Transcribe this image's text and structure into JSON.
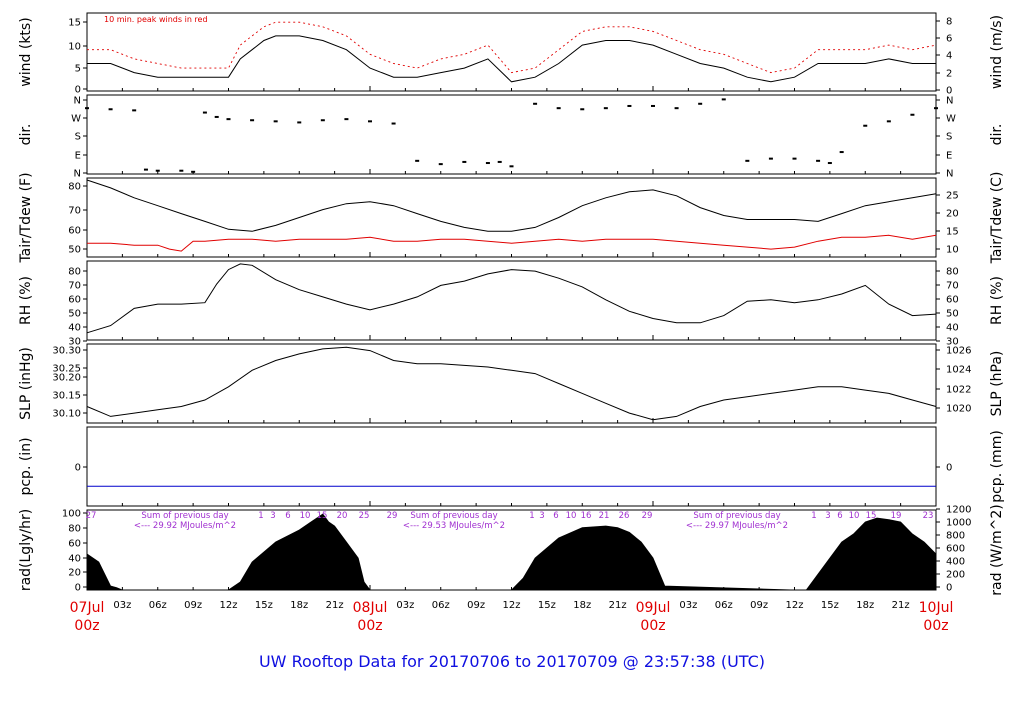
{
  "title": "UW Rooftop Data for 20170706  to  20170709 @ 23:57:38  (UTC)",
  "title_color": "#1010e0",
  "date_label_color": "#e00000",
  "x_tick_labels": [
    "03z",
    "06z",
    "09z",
    "12z",
    "15z",
    "18z",
    "21z",
    "03z",
    "06z",
    "09z",
    "12z",
    "15z",
    "18z",
    "21z",
    "03z",
    "06z",
    "09z",
    "12z",
    "15z",
    "18z",
    "21z"
  ],
  "date_labels": [
    {
      "date": "07Jul",
      "hour": "00z"
    },
    {
      "date": "08Jul",
      "hour": "00z"
    },
    {
      "date": "09Jul",
      "hour": "00z"
    },
    {
      "date": "10Jul",
      "hour": "00z"
    }
  ],
  "panels": {
    "wind": {
      "left_label": "wind (kts)",
      "right_label": "wind (m/s)",
      "note": "10 min. peak winds in red",
      "note_color": "#e00000",
      "left_ticks": [
        "0",
        "5",
        "10",
        "15"
      ],
      "right_ticks": [
        "0",
        "2",
        "4",
        "6",
        "8"
      ]
    },
    "dir": {
      "left_label": "dir.",
      "right_label": "dir.",
      "left_ticks": [
        "N",
        "E",
        "S",
        "W",
        "N"
      ],
      "right_ticks": [
        "N",
        "E",
        "S",
        "W",
        "N"
      ]
    },
    "temp": {
      "left_label": "Tair/Tdew (F)",
      "right_label": "Tair/Tdew (C)",
      "left_ticks": [
        "50",
        "60",
        "70",
        "80"
      ],
      "right_ticks": [
        "10",
        "15",
        "20",
        "25"
      ]
    },
    "rh": {
      "left_label": "RH (%)",
      "right_label": "RH (%)",
      "left_ticks": [
        "30",
        "40",
        "50",
        "60",
        "70",
        "80"
      ],
      "right_ticks": [
        "30",
        "40",
        "50",
        "60",
        "70",
        "80"
      ]
    },
    "slp": {
      "left_label": "SLP (inHg)",
      "right_label": "SLP (hPa)",
      "left_ticks": [
        "30.10",
        "30.15",
        "30.20",
        "30.25",
        "30.30"
      ],
      "right_ticks": [
        "1020",
        "1022",
        "1024",
        "1026"
      ]
    },
    "pcp": {
      "left_label": "pcp. (in)",
      "right_label": "pcp. (mm)",
      "left_ticks": [
        "0"
      ],
      "right_ticks": [
        "0"
      ]
    },
    "rad": {
      "left_label": "rad(Lgly/hr)",
      "right_label": "rad (W/m^2)",
      "left_ticks": [
        "0",
        "20",
        "40",
        "60",
        "80",
        "100"
      ],
      "right_ticks": [
        "0",
        "200",
        "400",
        "600",
        "800",
        "1000",
        "1200"
      ],
      "sum_label": "Sum of previous day",
      "sums": [
        "<--- 29.92 MJoules/m^2",
        "<--- 29.53 MJoules/m^2",
        "<--- 29.97 MJoules/m^2"
      ],
      "sum_color": "#a030d0",
      "hour_marks": [
        "27",
        "1",
        "3",
        "6",
        "10",
        "15",
        "20",
        "25",
        "29",
        "1",
        "3",
        "6",
        "10",
        "16",
        "21",
        "26",
        "29",
        "1",
        "3",
        "6",
        "10",
        "15",
        "19",
        "23"
      ]
    }
  },
  "chart_data": [
    {
      "type": "line",
      "name": "wind",
      "x_unit": "hours since 07Jul 00z",
      "xlim": [
        0,
        72
      ],
      "ylim": [
        0,
        17
      ],
      "series": [
        {
          "name": "",
          "color": "#000000",
          "x": [
            0,
            2,
            4,
            6,
            8,
            10,
            12,
            13,
            14,
            15,
            16,
            18,
            20,
            22,
            24,
            26,
            28,
            30,
            32,
            34,
            36,
            38,
            40,
            42,
            44,
            46,
            48,
            50,
            52,
            54,
            56,
            58,
            60,
            62,
            64,
            66,
            68,
            70,
            72
          ],
          "values": [
            6,
            6,
            4,
            3,
            3,
            3,
            3,
            7,
            9,
            11,
            12,
            12,
            11,
            9,
            5,
            3,
            3,
            4,
            5,
            7,
            2,
            3,
            6,
            10,
            11,
            11,
            10,
            8,
            6,
            5,
            3,
            2,
            3,
            6,
            6,
            6,
            7,
            6,
            6
          ]
        },
        {
          "name": "10 min. peak winds in red",
          "color": "#e00000",
          "x": [
            0,
            2,
            4,
            6,
            8,
            10,
            12,
            13,
            14,
            15,
            16,
            18,
            20,
            22,
            24,
            26,
            28,
            30,
            32,
            34,
            36,
            38,
            40,
            42,
            44,
            46,
            48,
            50,
            52,
            54,
            56,
            58,
            60,
            62,
            64,
            66,
            68,
            70,
            72
          ],
          "values": [
            9,
            9,
            7,
            6,
            5,
            5,
            5,
            10,
            12,
            14,
            15,
            15,
            14,
            12,
            8,
            6,
            5,
            7,
            8,
            10,
            4,
            5,
            9,
            13,
            14,
            14,
            13,
            11,
            9,
            8,
            6,
            4,
            5,
            9,
            9,
            9,
            10,
            9,
            10
          ]
        }
      ]
    },
    {
      "type": "scatter",
      "name": "dir",
      "x_unit": "hours since 07Jul 00z",
      "y_unit": "degrees (0=N at bottom)",
      "xlim": [
        0,
        72
      ],
      "ylim": [
        0,
        360
      ],
      "series": [
        {
          "name": "",
          "color": "#000000",
          "x": [
            0,
            2,
            4,
            5,
            6,
            8,
            9,
            10,
            11,
            12,
            14,
            16,
            18,
            20,
            22,
            24,
            26,
            28,
            30,
            32,
            34,
            35,
            36,
            38,
            40,
            42,
            44,
            46,
            48,
            50,
            52,
            54,
            56,
            58,
            60,
            62,
            63,
            64,
            66,
            68,
            70,
            72
          ],
          "values": [
            300,
            295,
            290,
            20,
            15,
            15,
            10,
            280,
            260,
            250,
            245,
            240,
            235,
            245,
            250,
            240,
            230,
            60,
            45,
            55,
            50,
            55,
            35,
            320,
            300,
            295,
            300,
            310,
            310,
            300,
            320,
            340,
            60,
            70,
            70,
            60,
            50,
            100,
            220,
            240,
            270,
            300
          ]
        }
      ]
    },
    {
      "type": "line",
      "name": "temp",
      "x_unit": "hours since 07Jul 00z",
      "xlim": [
        0,
        72
      ],
      "ylim": [
        44,
        84
      ],
      "series": [
        {
          "name": "",
          "color": "#000000",
          "x": [
            0,
            2,
            4,
            6,
            8,
            10,
            12,
            14,
            16,
            18,
            20,
            22,
            24,
            26,
            28,
            30,
            32,
            34,
            36,
            38,
            40,
            42,
            44,
            46,
            48,
            50,
            52,
            54,
            56,
            58,
            60,
            62,
            64,
            66,
            68,
            70,
            72
          ],
          "values": [
            83,
            79,
            74,
            70,
            66,
            62,
            58,
            57,
            60,
            64,
            68,
            71,
            72,
            70,
            66,
            62,
            59,
            57,
            57,
            59,
            64,
            70,
            74,
            77,
            78,
            75,
            69,
            65,
            63,
            63,
            63,
            62,
            66,
            70,
            72,
            74,
            76
          ]
        },
        {
          "name": "",
          "color": "#e00000",
          "x": [
            0,
            2,
            4,
            6,
            7,
            8,
            9,
            10,
            12,
            14,
            16,
            18,
            20,
            22,
            24,
            26,
            28,
            30,
            32,
            34,
            36,
            38,
            40,
            42,
            44,
            46,
            48,
            50,
            52,
            54,
            56,
            58,
            60,
            62,
            64,
            66,
            68,
            70,
            72
          ],
          "values": [
            51,
            51,
            50,
            50,
            48,
            47,
            52,
            52,
            53,
            53,
            52,
            53,
            53,
            53,
            54,
            52,
            52,
            53,
            53,
            52,
            51,
            52,
            53,
            52,
            53,
            53,
            53,
            52,
            51,
            50,
            49,
            48,
            49,
            52,
            54,
            54,
            55,
            53,
            55
          ]
        }
      ]
    },
    {
      "type": "line",
      "name": "rh",
      "x_unit": "hours since 07Jul 00z",
      "xlim": [
        0,
        72
      ],
      "ylim": [
        30,
        85
      ],
      "series": [
        {
          "name": "",
          "color": "#000000",
          "x": [
            0,
            2,
            4,
            6,
            8,
            10,
            11,
            12,
            13,
            14,
            16,
            18,
            20,
            22,
            24,
            26,
            28,
            30,
            32,
            34,
            36,
            38,
            40,
            42,
            44,
            46,
            48,
            50,
            52,
            54,
            56,
            58,
            60,
            62,
            64,
            66,
            68,
            70,
            72
          ],
          "values": [
            35,
            40,
            52,
            55,
            55,
            56,
            69,
            79,
            83,
            82,
            72,
            65,
            60,
            55,
            51,
            55,
            60,
            68,
            71,
            76,
            79,
            78,
            73,
            67,
            58,
            50,
            45,
            42,
            42,
            47,
            57,
            58,
            56,
            58,
            62,
            68,
            55,
            47,
            48
          ]
        }
      ]
    },
    {
      "type": "line",
      "name": "slp",
      "x_unit": "hours since 07Jul 00z",
      "xlim": [
        0,
        72
      ],
      "ylim": [
        30.07,
        30.31
      ],
      "series": [
        {
          "name": "",
          "color": "#000000",
          "x": [
            0,
            2,
            4,
            6,
            8,
            10,
            12,
            14,
            16,
            18,
            20,
            22,
            24,
            26,
            28,
            30,
            32,
            34,
            36,
            38,
            40,
            42,
            44,
            46,
            48,
            50,
            52,
            54,
            56,
            58,
            60,
            62,
            64,
            66,
            68,
            70,
            72
          ],
          "values": [
            30.12,
            30.09,
            30.1,
            30.11,
            30.12,
            30.14,
            30.18,
            30.23,
            30.26,
            30.28,
            30.295,
            30.3,
            30.29,
            30.26,
            30.25,
            30.25,
            30.245,
            30.24,
            30.23,
            30.22,
            30.19,
            30.16,
            30.13,
            30.1,
            30.08,
            30.09,
            30.12,
            30.14,
            30.15,
            30.16,
            30.17,
            30.18,
            30.18,
            30.17,
            30.16,
            30.14,
            30.12
          ]
        }
      ]
    },
    {
      "type": "line",
      "name": "pcp",
      "x_unit": "hours since 07Jul 00z",
      "xlim": [
        0,
        72
      ],
      "ylim": [
        -0.1,
        0.3
      ],
      "series": [
        {
          "name": "",
          "color": "#0000cc",
          "x": [
            0,
            72
          ],
          "values": [
            0,
            0
          ]
        }
      ]
    },
    {
      "type": "area",
      "name": "rad",
      "x_unit": "hours since 07Jul 00z",
      "xlim": [
        0,
        72
      ],
      "ylim": [
        0,
        100
      ],
      "series": [
        {
          "name": "",
          "color": "#000000",
          "x": [
            0,
            1,
            2,
            2.5,
            3,
            12,
            13,
            14,
            16,
            18,
            19,
            20,
            20.5,
            21,
            22,
            23,
            23.5,
            24,
            36,
            37,
            38,
            40,
            42,
            44,
            45,
            46,
            47,
            48,
            49,
            60,
            61,
            62,
            63,
            64,
            65,
            66,
            67,
            68,
            69,
            70,
            71,
            72
          ],
          "values": [
            45,
            35,
            5,
            3,
            0,
            0,
            10,
            35,
            60,
            75,
            85,
            95,
            85,
            80,
            60,
            40,
            10,
            0,
            0,
            15,
            40,
            65,
            78,
            80,
            78,
            72,
            60,
            40,
            5,
            0,
            0,
            20,
            40,
            60,
            70,
            85,
            90,
            88,
            85,
            70,
            60,
            45
          ]
        }
      ]
    }
  ]
}
